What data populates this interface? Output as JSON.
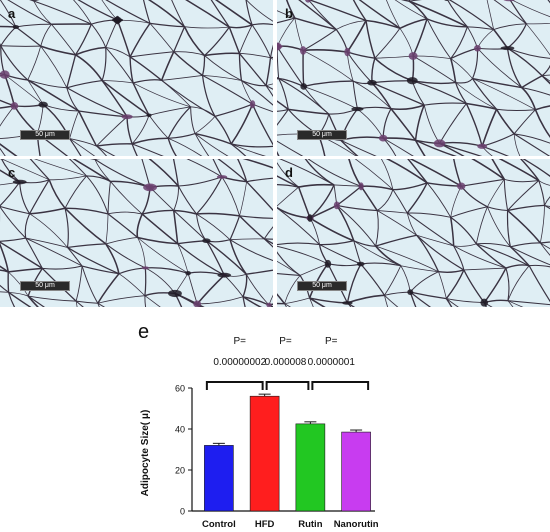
{
  "panels": [
    {
      "letter": "a",
      "scale_label": "50 μm"
    },
    {
      "letter": "b",
      "scale_label": "50 μm"
    },
    {
      "letter": "c",
      "scale_label": "50 μm"
    },
    {
      "letter": "d",
      "scale_label": "50 μm"
    }
  ],
  "colors": {
    "tissue_bg": "#dfeef4",
    "cell_border": "#3a3342",
    "stroma": "#6b3f6f"
  },
  "chart_data": {
    "type": "bar",
    "panel_letter": "e",
    "categories": [
      "Control",
      "HFD",
      "Rutin",
      "Nanorutin"
    ],
    "values": [
      32,
      56,
      42.5,
      38.5
    ],
    "errors": [
      1,
      1,
      1,
      1
    ],
    "colors": [
      "#1e1ef0",
      "#ff1e1e",
      "#22c722",
      "#c83cf0"
    ],
    "ylabel": "Adipocyte Size( μ)",
    "ylim": [
      0,
      60
    ],
    "yticks": [
      0,
      20,
      40,
      60
    ],
    "comparisons": [
      {
        "label": "P=",
        "value": "0.00000002",
        "from": 0,
        "to": 1
      },
      {
        "label": "P=",
        "value": "0.000008",
        "from": 1,
        "to": 2
      },
      {
        "label": "P=",
        "value": "0.0000001",
        "from": 2,
        "to": 3
      }
    ]
  }
}
